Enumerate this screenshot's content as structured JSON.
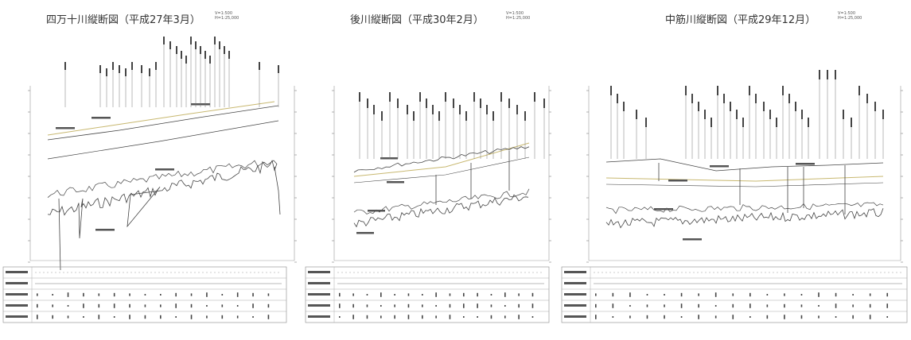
{
  "panels": [
    {
      "title": "四万十川縦断図（平成27年3月）",
      "scale": [
        "V=1:500",
        "H=1:25,000"
      ],
      "x0": 0,
      "plot": {
        "x": 38,
        "w": 332
      },
      "trunc": true,
      "stationSeq": [
        7,
        6,
        5,
        4,
        3,
        8,
        7,
        6,
        2,
        4,
        3,
        9,
        6,
        5,
        4,
        3
      ]
    },
    {
      "title": "後川縦断図（平成30年2月）",
      "scale": [
        "V=1:500",
        "H=1:25,000"
      ],
      "x0": 0,
      "plot": {
        "x": 420,
        "w": 270
      },
      "trunc": false,
      "stationSeq": [
        4,
        3,
        6,
        5,
        2,
        7,
        6,
        5,
        3,
        4,
        8,
        6,
        5,
        3,
        4
      ]
    },
    {
      "title": "中筋川縦断図（平成29年12月）",
      "scale": [
        "V=1:500",
        "H=1:25,000"
      ],
      "x0": 0,
      "plot": {
        "x": 740,
        "w": 392
      },
      "trunc": false,
      "stationSeq": [
        3,
        4,
        5,
        2,
        6,
        4,
        3,
        5,
        7,
        4,
        6,
        3,
        2,
        5,
        4,
        6,
        3,
        4
      ]
    }
  ],
  "colors": {
    "line": "#444444",
    "water": "#c8b870",
    "grid": "#999999"
  }
}
